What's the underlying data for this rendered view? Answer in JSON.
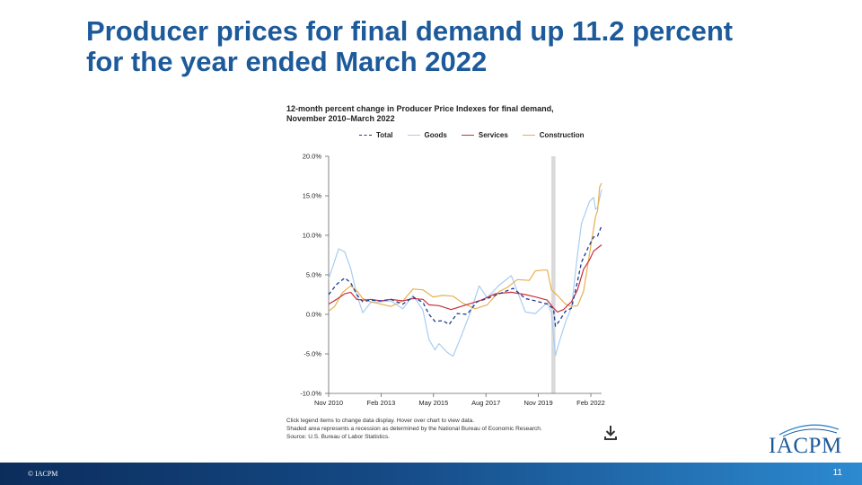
{
  "slide": {
    "title": "Producer prices for final demand up 11.2 percent\nfor the year ended March 2022",
    "footer_left": "© IACPM",
    "page_number": "11",
    "logo_text": "IACPM"
  },
  "chart_notes": [
    "Click legend items to change data display. Hover over chart to view data.",
    "Shaded area represents a recession as determined by the National Bureau of Economic Research.",
    "Source: U.S. Bureau of Labor Statistics."
  ],
  "chart_data": {
    "type": "line",
    "title": "12-month percent change in Producer Price Indexes for final demand,\nNovember 2010–March 2022",
    "x_tick_labels": [
      "Nov 2010",
      "Feb 2013",
      "May 2015",
      "Aug 2017",
      "Nov 2019",
      "Feb 2022"
    ],
    "y_tick_labels": [
      "20.0%",
      "15.0%",
      "10.0%",
      "5.0%",
      "0.0%",
      "-5.0%",
      "-10.0%"
    ],
    "ylim": [
      -10,
      20
    ],
    "xlim": [
      "2010-11",
      "2022-03"
    ],
    "grid": false,
    "legend_position": "top",
    "recession_shading": [
      "2020-02",
      "2020-04"
    ],
    "series": [
      {
        "name": "Total",
        "color": "#1f3a93",
        "style": "dashed",
        "points": [
          [
            "2010-11",
            2.5
          ],
          [
            "2011-03",
            3.8
          ],
          [
            "2011-07",
            4.6
          ],
          [
            "2011-10",
            4.0
          ],
          [
            "2012-01",
            2.5
          ],
          [
            "2012-04",
            1.6
          ],
          [
            "2012-08",
            1.8
          ],
          [
            "2013-01",
            1.7
          ],
          [
            "2013-06",
            1.9
          ],
          [
            "2013-12",
            1.3
          ],
          [
            "2014-05",
            2.2
          ],
          [
            "2014-10",
            1.5
          ],
          [
            "2015-01",
            0.0
          ],
          [
            "2015-04",
            -0.9
          ],
          [
            "2015-08",
            -0.8
          ],
          [
            "2015-11",
            -1.3
          ],
          [
            "2016-03",
            0.1
          ],
          [
            "2016-08",
            0.0
          ],
          [
            "2017-01",
            1.6
          ],
          [
            "2017-06",
            2.0
          ],
          [
            "2017-12",
            2.6
          ],
          [
            "2018-07",
            3.3
          ],
          [
            "2019-01",
            2.0
          ],
          [
            "2019-06",
            1.7
          ],
          [
            "2019-12",
            1.3
          ],
          [
            "2020-03",
            0.7
          ],
          [
            "2020-04",
            -1.5
          ],
          [
            "2020-06",
            -0.8
          ],
          [
            "2020-09",
            0.4
          ],
          [
            "2020-12",
            0.8
          ],
          [
            "2021-03",
            4.2
          ],
          [
            "2021-05",
            6.6
          ],
          [
            "2021-08",
            8.3
          ],
          [
            "2021-11",
            9.8
          ],
          [
            "2022-01",
            9.9
          ],
          [
            "2022-03",
            11.2
          ]
        ]
      },
      {
        "name": "Goods",
        "color": "#a9cdf0",
        "style": "solid",
        "points": [
          [
            "2010-11",
            4.5
          ],
          [
            "2011-01",
            6.0
          ],
          [
            "2011-04",
            8.3
          ],
          [
            "2011-07",
            7.9
          ],
          [
            "2011-10",
            5.8
          ],
          [
            "2012-01",
            2.5
          ],
          [
            "2012-04",
            0.2
          ],
          [
            "2012-08",
            1.5
          ],
          [
            "2013-01",
            1.6
          ],
          [
            "2013-06",
            1.7
          ],
          [
            "2013-12",
            0.7
          ],
          [
            "2014-05",
            2.4
          ],
          [
            "2014-10",
            0.5
          ],
          [
            "2015-01",
            -3.2
          ],
          [
            "2015-04",
            -4.5
          ],
          [
            "2015-06",
            -3.7
          ],
          [
            "2015-10",
            -4.8
          ],
          [
            "2016-01",
            -5.3
          ],
          [
            "2016-05",
            -2.8
          ],
          [
            "2016-10",
            0.5
          ],
          [
            "2017-02",
            3.6
          ],
          [
            "2017-06",
            2.1
          ],
          [
            "2017-12",
            3.7
          ],
          [
            "2018-06",
            4.9
          ],
          [
            "2019-01",
            0.3
          ],
          [
            "2019-06",
            0.1
          ],
          [
            "2019-12",
            1.5
          ],
          [
            "2020-02",
            0.2
          ],
          [
            "2020-04",
            -5.2
          ],
          [
            "2020-06",
            -3.4
          ],
          [
            "2020-09",
            -1.0
          ],
          [
            "2020-12",
            0.9
          ],
          [
            "2021-03",
            7.6
          ],
          [
            "2021-05",
            11.5
          ],
          [
            "2021-09",
            14.3
          ],
          [
            "2021-11",
            14.8
          ],
          [
            "2021-12",
            13.3
          ],
          [
            "2022-01",
            13.5
          ],
          [
            "2022-03",
            15.8
          ]
        ]
      },
      {
        "name": "Services",
        "color": "#c8323c",
        "style": "solid",
        "points": [
          [
            "2010-11",
            1.3
          ],
          [
            "2011-03",
            1.9
          ],
          [
            "2011-07",
            2.6
          ],
          [
            "2011-10",
            2.8
          ],
          [
            "2012-01",
            1.9
          ],
          [
            "2012-04",
            1.8
          ],
          [
            "2012-08",
            1.9
          ],
          [
            "2013-01",
            1.7
          ],
          [
            "2013-06",
            1.9
          ],
          [
            "2013-12",
            1.7
          ],
          [
            "2014-05",
            2.0
          ],
          [
            "2014-10",
            1.9
          ],
          [
            "2015-01",
            1.2
          ],
          [
            "2015-06",
            1.1
          ],
          [
            "2015-12",
            0.6
          ],
          [
            "2016-05",
            1.0
          ],
          [
            "2016-10",
            1.4
          ],
          [
            "2017-03",
            1.8
          ],
          [
            "2017-10",
            2.6
          ],
          [
            "2018-06",
            2.8
          ],
          [
            "2019-01",
            2.5
          ],
          [
            "2019-06",
            2.2
          ],
          [
            "2019-12",
            1.8
          ],
          [
            "2020-03",
            0.8
          ],
          [
            "2020-05",
            0.3
          ],
          [
            "2020-08",
            0.6
          ],
          [
            "2020-12",
            1.6
          ],
          [
            "2021-03",
            3.1
          ],
          [
            "2021-06",
            5.7
          ],
          [
            "2021-09",
            6.9
          ],
          [
            "2021-11",
            8.0
          ],
          [
            "2022-01",
            8.4
          ],
          [
            "2022-03",
            8.8
          ]
        ]
      },
      {
        "name": "Construction",
        "color": "#e8b04f",
        "style": "solid",
        "points": [
          [
            "2010-11",
            0.4
          ],
          [
            "2011-02",
            1.0
          ],
          [
            "2011-06",
            2.8
          ],
          [
            "2011-10",
            3.6
          ],
          [
            "2012-01",
            3.0
          ],
          [
            "2012-04",
            2.0
          ],
          [
            "2012-08",
            1.6
          ],
          [
            "2013-01",
            1.3
          ],
          [
            "2013-06",
            1.0
          ],
          [
            "2013-12",
            1.7
          ],
          [
            "2014-05",
            3.2
          ],
          [
            "2014-10",
            3.1
          ],
          [
            "2015-03",
            2.2
          ],
          [
            "2015-08",
            2.4
          ],
          [
            "2016-01",
            2.3
          ],
          [
            "2016-06",
            1.4
          ],
          [
            "2016-12",
            0.7
          ],
          [
            "2017-06",
            1.2
          ],
          [
            "2017-12",
            2.9
          ],
          [
            "2018-04",
            3.4
          ],
          [
            "2018-09",
            4.4
          ],
          [
            "2019-03",
            4.3
          ],
          [
            "2019-06",
            5.5
          ],
          [
            "2019-10",
            5.6
          ],
          [
            "2019-12",
            5.6
          ],
          [
            "2020-02",
            3.1
          ],
          [
            "2020-05",
            2.4
          ],
          [
            "2020-09",
            1.3
          ],
          [
            "2020-12",
            1.0
          ],
          [
            "2021-03",
            1.1
          ],
          [
            "2021-06",
            2.9
          ],
          [
            "2021-09",
            7.7
          ],
          [
            "2021-12",
            12.4
          ],
          [
            "2022-01",
            13.1
          ],
          [
            "2022-02",
            16.1
          ],
          [
            "2022-03",
            16.6
          ]
        ]
      }
    ]
  }
}
